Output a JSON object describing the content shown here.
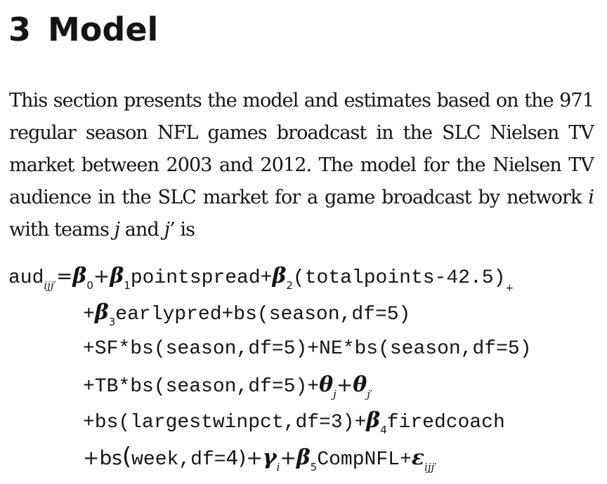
{
  "section": {
    "number": "3",
    "title": "Model"
  },
  "paragraph": {
    "text": "This section presents the model and estimates based on the 971 regular season NFL games broadcast in the SLC Nielsen TV market between 2003 and 2012. The model for the Nielsen TV audience in the SLC market for a game broadcast by network ",
    "var_i": "i",
    "with_teams": " with teams ",
    "var_j": "j",
    "and": " and ",
    "var_jp": "j’",
    "is": " is"
  },
  "equation": {
    "line1": {
      "aud": "aud",
      "aud_sub": "ijj′",
      "eq": "=",
      "beta0": "β",
      "beta0_sub": "0",
      "plus1": "+",
      "beta1": "β",
      "beta1_sub": "1",
      "t1": "pointspread+",
      "beta2": "β",
      "beta2_sub": "2",
      "t2": "(totalpoints-42.5)",
      "plus_sub": "+"
    },
    "line2": {
      "plus": "+",
      "beta3": "β",
      "beta3_sub": "3",
      "t1": "earlypred+bs(season,df=5)"
    },
    "line3": {
      "t1": "+SF*bs(season,df=5)+NE*bs(season,df=5)"
    },
    "line4": {
      "t1": "+TB*bs(season,df=5)+",
      "theta1": "θ",
      "theta1_sub": "j",
      "plus": "+",
      "theta2": "θ",
      "theta2_sub": "j′"
    },
    "line5": {
      "t1": "+bs(largestwinpct,df=3)+",
      "beta4": "β",
      "beta4_sub": "4",
      "t2": "firedcoach"
    },
    "line6": {
      "plus": "+",
      "bs": "bs",
      "lparen": "(",
      "t1": "week,df=",
      "four": "4",
      "rparen": ")",
      "plus2": "+",
      "gamma": "γ",
      "gamma_sub": "i",
      "plus3": "+",
      "beta5": "β",
      "beta5_sub": "5",
      "t2": "CompNFL+",
      "eps": "ε",
      "eps_sub": "ijj′"
    }
  }
}
